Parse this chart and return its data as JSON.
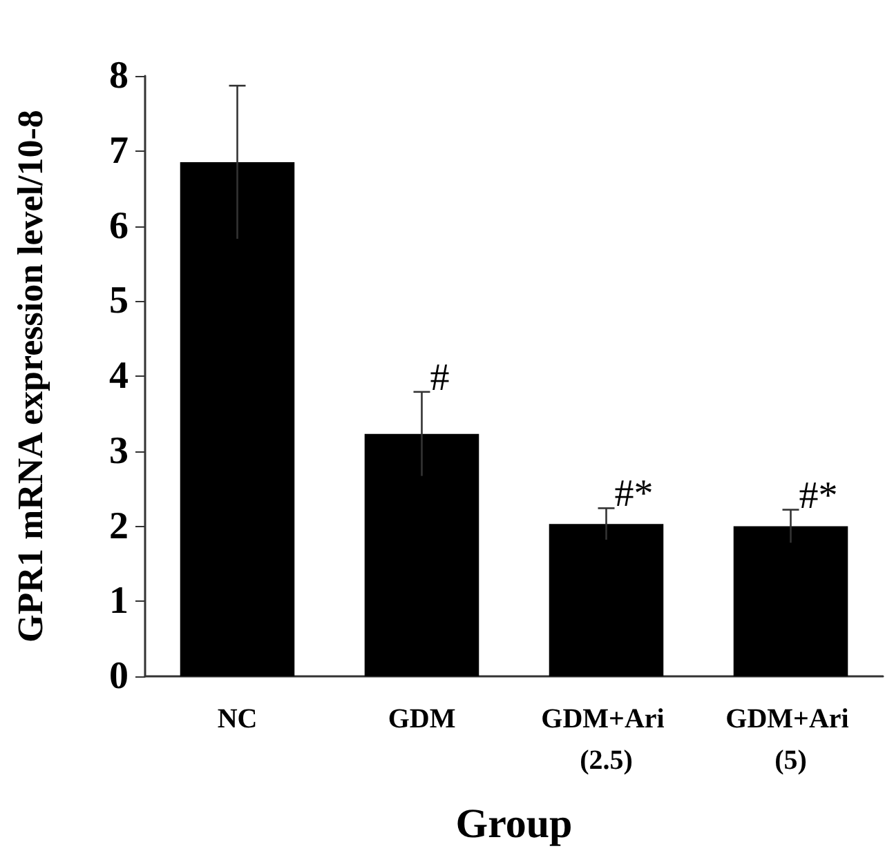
{
  "chart_data": {
    "type": "bar",
    "xlabel": "Group",
    "ylabel": "GPR1 mRNA expression level/10-8",
    "categories": [
      "NC",
      "GDM",
      "GDM+Ari (2.5)",
      "GDM+Ari (5)"
    ],
    "values": [
      6.85,
      3.23,
      2.03,
      2.0
    ],
    "errors": [
      1.02,
      0.56,
      0.21,
      0.22
    ],
    "color": "#000000",
    "ylim": [
      0,
      8
    ],
    "yticks": [
      0,
      1,
      2,
      3,
      4,
      5,
      6,
      7,
      8
    ],
    "grid": false,
    "annotations": [
      {
        "text": "#",
        "x": "GDM",
        "y": 3.79
      },
      {
        "text": "#*",
        "x": "GDM+Ari (2.5)",
        "y": 2.24
      },
      {
        "text": "#*",
        "x": "GDM+Ari (5)",
        "y": 2.22
      }
    ]
  }
}
